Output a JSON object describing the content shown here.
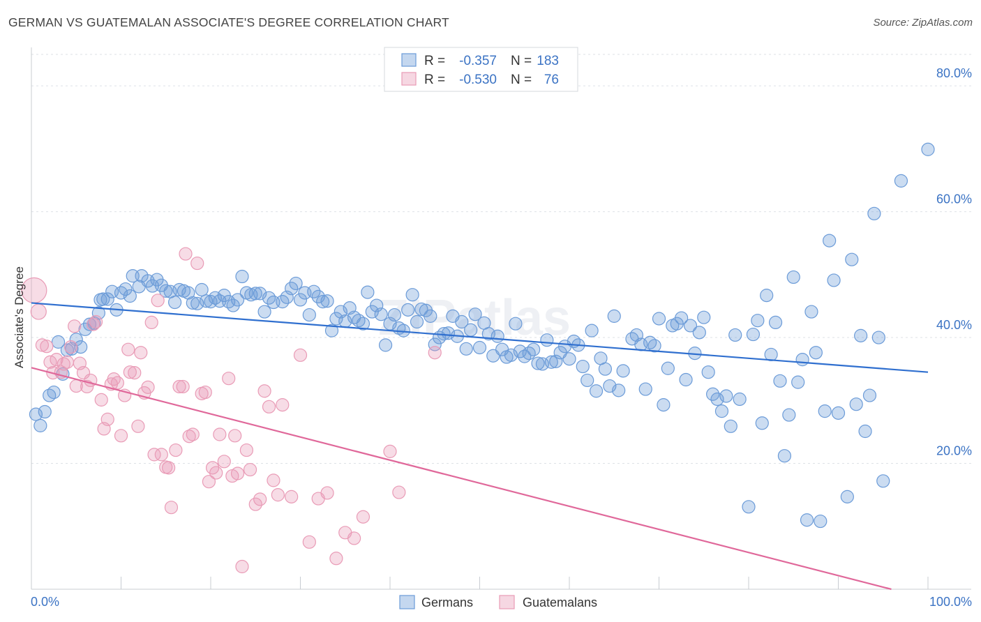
{
  "title": "GERMAN VS GUATEMALAN ASSOCIATE'S DEGREE CORRELATION CHART",
  "source": "Source: ZipAtlas.com",
  "watermark": "ZIPatlas",
  "chart_data": {
    "type": "scatter",
    "ylabel": "Associate's Degree",
    "xlim": [
      0,
      100
    ],
    "ylim": [
      0,
      85
    ],
    "x_tick_labels": [
      "0.0%",
      "100.0%"
    ],
    "y_ticks": [
      20,
      40,
      60,
      80
    ],
    "y_tick_labels": [
      "20.0%",
      "40.0%",
      "60.0%",
      "80.0%"
    ],
    "grid": true,
    "legend_position": "top-center",
    "colors": {
      "Germans": "#6b9bd8",
      "Guatemalans": "#e99bb6",
      "german_line": "#2f6fcf",
      "guatemalan_line": "#e0689a",
      "tick_label": "#3b73c4"
    },
    "stats": [
      {
        "series": "Germans",
        "r_label": "R =",
        "r": "-0.357",
        "n_label": "N =",
        "n": "183"
      },
      {
        "series": "Guatemalans",
        "r_label": "R =",
        "r": "-0.530",
        "n_label": "N =",
        "n": "76"
      }
    ],
    "series": [
      {
        "name": "Germans",
        "trend": [
          [
            0,
            45.5
          ],
          [
            100,
            34.5
          ]
        ],
        "points": [
          [
            0.5,
            27.8
          ],
          [
            1,
            26
          ],
          [
            1.5,
            28.2
          ],
          [
            2,
            30.8
          ],
          [
            2.5,
            31.3
          ],
          [
            3,
            39.3
          ],
          [
            3.5,
            34.2
          ],
          [
            4,
            38
          ],
          [
            4.5,
            38.2
          ],
          [
            5,
            39.7
          ],
          [
            5.5,
            38.5
          ],
          [
            6,
            41.3
          ],
          [
            6.5,
            42.1
          ],
          [
            7,
            42.3
          ],
          [
            7.5,
            43.9
          ],
          [
            7.7,
            46
          ],
          [
            8,
            46.1
          ],
          [
            8.5,
            46.1
          ],
          [
            9,
            47.3
          ],
          [
            9.5,
            44.4
          ],
          [
            10,
            47.1
          ],
          [
            10.5,
            47.7
          ],
          [
            11,
            46.6
          ],
          [
            11.3,
            49.8
          ],
          [
            12,
            48.1
          ],
          [
            12.3,
            49.8
          ],
          [
            13,
            49
          ],
          [
            13.5,
            48.2
          ],
          [
            14,
            49.2
          ],
          [
            14.5,
            48.3
          ],
          [
            15,
            47.4
          ],
          [
            15.5,
            47.3
          ],
          [
            16,
            45.6
          ],
          [
            16.5,
            47.6
          ],
          [
            17,
            47.4
          ],
          [
            17.5,
            47.1
          ],
          [
            18,
            45.5
          ],
          [
            18.5,
            45.4
          ],
          [
            19,
            47.6
          ],
          [
            19.5,
            45.8
          ],
          [
            20,
            45.7
          ],
          [
            20.5,
            46.3
          ],
          [
            21,
            45.8
          ],
          [
            21.5,
            46.7
          ],
          [
            22,
            45.7
          ],
          [
            22.5,
            45.1
          ],
          [
            23,
            46
          ],
          [
            23.5,
            49.7
          ],
          [
            24,
            47.1
          ],
          [
            24.5,
            46.8
          ],
          [
            25,
            47
          ],
          [
            25.5,
            47
          ],
          [
            26,
            44.1
          ],
          [
            26.5,
            46.3
          ],
          [
            27,
            45.6
          ],
          [
            28,
            45.7
          ],
          [
            28.5,
            46.4
          ],
          [
            29,
            47.8
          ],
          [
            29.5,
            48.6
          ],
          [
            30,
            46
          ],
          [
            30.5,
            47.1
          ],
          [
            31,
            43.6
          ],
          [
            31.5,
            47.3
          ],
          [
            32,
            46.5
          ],
          [
            32.5,
            45.7
          ],
          [
            33,
            45.8
          ],
          [
            33.5,
            41.1
          ],
          [
            34,
            43
          ],
          [
            34.5,
            44.1
          ],
          [
            35,
            42.6
          ],
          [
            35.5,
            44.7
          ],
          [
            36,
            43.2
          ],
          [
            36.5,
            42.7
          ],
          [
            37,
            42.2
          ],
          [
            37.5,
            47.2
          ],
          [
            38,
            44.1
          ],
          [
            38.5,
            45.1
          ],
          [
            39,
            43.7
          ],
          [
            39.5,
            38.8
          ],
          [
            40,
            42.2
          ],
          [
            40.5,
            43.6
          ],
          [
            41,
            41.5
          ],
          [
            41.5,
            41.1
          ],
          [
            42,
            44.4
          ],
          [
            42.5,
            46.8
          ],
          [
            43,
            42.5
          ],
          [
            43.5,
            44.5
          ],
          [
            44,
            44.3
          ],
          [
            44.5,
            43.4
          ],
          [
            45,
            38.9
          ],
          [
            45.5,
            40
          ],
          [
            46,
            40.6
          ],
          [
            46.5,
            40.7
          ],
          [
            47,
            43.4
          ],
          [
            47.5,
            40.2
          ],
          [
            48,
            42.5
          ],
          [
            48.5,
            38.2
          ],
          [
            49,
            41.2
          ],
          [
            49.5,
            43.7
          ],
          [
            50,
            38.4
          ],
          [
            50.5,
            42.3
          ],
          [
            51,
            40.6
          ],
          [
            51.5,
            37.1
          ],
          [
            52,
            40.2
          ],
          [
            52.5,
            38.1
          ],
          [
            53,
            36.9
          ],
          [
            53.5,
            37.2
          ],
          [
            54,
            42.2
          ],
          [
            54.5,
            37.8
          ],
          [
            55,
            37
          ],
          [
            55.5,
            37.5
          ],
          [
            56,
            38.1
          ],
          [
            56.5,
            35.9
          ],
          [
            57,
            35.8
          ],
          [
            57.5,
            39.6
          ],
          [
            58,
            36.1
          ],
          [
            58.5,
            36.2
          ],
          [
            59,
            37.6
          ],
          [
            59.5,
            38.6
          ],
          [
            60,
            36.6
          ],
          [
            60.5,
            39.4
          ],
          [
            61,
            38.8
          ],
          [
            61.5,
            35.4
          ],
          [
            62,
            33.2
          ],
          [
            62.5,
            41.1
          ],
          [
            63,
            31.5
          ],
          [
            63.5,
            36.7
          ],
          [
            64,
            35
          ],
          [
            64.5,
            32.3
          ],
          [
            65,
            43.4
          ],
          [
            65.5,
            31.6
          ],
          [
            66,
            34.7
          ],
          [
            67,
            39.8
          ],
          [
            67.5,
            40.4
          ],
          [
            68,
            38.9
          ],
          [
            68.5,
            31.8
          ],
          [
            69,
            39.2
          ],
          [
            69.5,
            38.7
          ],
          [
            70,
            43
          ],
          [
            70.5,
            29.3
          ],
          [
            71,
            35.1
          ],
          [
            71.5,
            41.9
          ],
          [
            72,
            42.2
          ],
          [
            72.5,
            43.1
          ],
          [
            73,
            33.3
          ],
          [
            73.5,
            41.9
          ],
          [
            74,
            37.5
          ],
          [
            74.5,
            40.8
          ],
          [
            75,
            43.2
          ],
          [
            75.5,
            34.5
          ],
          [
            76,
            31
          ],
          [
            76.5,
            30.2
          ],
          [
            77,
            28.3
          ],
          [
            77.5,
            30.7
          ],
          [
            78,
            25.9
          ],
          [
            78.5,
            40.4
          ],
          [
            79,
            30.2
          ],
          [
            80,
            13.1
          ],
          [
            80.5,
            40.5
          ],
          [
            81,
            42.7
          ],
          [
            81.5,
            26.4
          ],
          [
            82,
            46.7
          ],
          [
            82.5,
            37.3
          ],
          [
            83,
            42.4
          ],
          [
            83.5,
            33.1
          ],
          [
            84,
            21.2
          ],
          [
            84.5,
            27.7
          ],
          [
            85,
            49.6
          ],
          [
            85.5,
            32.9
          ],
          [
            86,
            36.5
          ],
          [
            86.5,
            11
          ],
          [
            87,
            44.1
          ],
          [
            87.5,
            37.6
          ],
          [
            88,
            10.8
          ],
          [
            88.5,
            28.3
          ],
          [
            89,
            55.4
          ],
          [
            89.5,
            49.1
          ],
          [
            90,
            28
          ],
          [
            91,
            14.7
          ],
          [
            91.5,
            52.4
          ],
          [
            92,
            29.4
          ],
          [
            92.5,
            40.3
          ],
          [
            93,
            25.1
          ],
          [
            93.5,
            30.8
          ],
          [
            94,
            59.7
          ],
          [
            94.5,
            40
          ],
          [
            95,
            17.2
          ],
          [
            97,
            64.9
          ],
          [
            100,
            69.9
          ]
        ]
      },
      {
        "name": "Guatemalans",
        "trend": [
          [
            0,
            35.2
          ],
          [
            100,
            -1.5
          ]
        ],
        "points": [
          [
            0.3,
            47.5
          ],
          [
            0.8,
            44.1
          ],
          [
            1.2,
            38.8
          ],
          [
            1.7,
            38.6
          ],
          [
            2.1,
            36.1
          ],
          [
            2.4,
            34.4
          ],
          [
            2.8,
            36.5
          ],
          [
            3.3,
            34.5
          ],
          [
            3.6,
            35.8
          ],
          [
            4,
            36.1
          ],
          [
            4.4,
            38.5
          ],
          [
            4.8,
            41.8
          ],
          [
            5,
            32.3
          ],
          [
            5.4,
            35.9
          ],
          [
            5.8,
            34.4
          ],
          [
            6.2,
            32.2
          ],
          [
            6.6,
            33.2
          ],
          [
            6.9,
            42.1
          ],
          [
            7.2,
            42.5
          ],
          [
            7.8,
            30.1
          ],
          [
            8.1,
            25.5
          ],
          [
            8.5,
            27
          ],
          [
            8.9,
            32.6
          ],
          [
            9.2,
            33.4
          ],
          [
            9.6,
            32.8
          ],
          [
            10,
            24.4
          ],
          [
            10.4,
            30.8
          ],
          [
            10.8,
            38.1
          ],
          [
            11,
            34.5
          ],
          [
            11.5,
            34.4
          ],
          [
            11.9,
            25.9
          ],
          [
            12.2,
            37.6
          ],
          [
            12.6,
            31.2
          ],
          [
            13,
            32.1
          ],
          [
            13.4,
            42.4
          ],
          [
            13.7,
            21.4
          ],
          [
            14.1,
            45.9
          ],
          [
            14.5,
            21.4
          ],
          [
            15,
            19.4
          ],
          [
            15.3,
            19.3
          ],
          [
            15.6,
            13
          ],
          [
            16.1,
            22.1
          ],
          [
            16.5,
            32.2
          ],
          [
            16.9,
            32.2
          ],
          [
            17.2,
            53.3
          ],
          [
            17.6,
            24.3
          ],
          [
            18,
            24.6
          ],
          [
            18.5,
            51.8
          ],
          [
            19,
            31.1
          ],
          [
            19.4,
            31.3
          ],
          [
            19.8,
            17.1
          ],
          [
            20.2,
            19.3
          ],
          [
            20.6,
            18.5
          ],
          [
            21,
            24.6
          ],
          [
            21.5,
            20.3
          ],
          [
            22,
            33.5
          ],
          [
            22.4,
            18
          ],
          [
            22.7,
            24.4
          ],
          [
            23,
            18.4
          ],
          [
            23.5,
            3.6
          ],
          [
            24,
            22.1
          ],
          [
            24.4,
            19
          ],
          [
            25,
            13.5
          ],
          [
            25.5,
            14.3
          ],
          [
            26,
            31.5
          ],
          [
            26.5,
            29
          ],
          [
            27,
            17.3
          ],
          [
            27.5,
            15
          ],
          [
            28,
            29.3
          ],
          [
            29,
            14.7
          ],
          [
            30,
            37.2
          ],
          [
            31,
            7.5
          ],
          [
            32,
            14.4
          ],
          [
            33,
            15.3
          ],
          [
            34,
            4.9
          ],
          [
            35,
            9
          ],
          [
            36,
            8.1
          ],
          [
            37,
            11.5
          ],
          [
            40,
            21.9
          ],
          [
            41,
            15.4
          ],
          [
            45,
            37.6
          ]
        ]
      }
    ]
  },
  "legend": {
    "items": [
      {
        "label": "Germans"
      },
      {
        "label": "Guatemalans"
      }
    ]
  }
}
